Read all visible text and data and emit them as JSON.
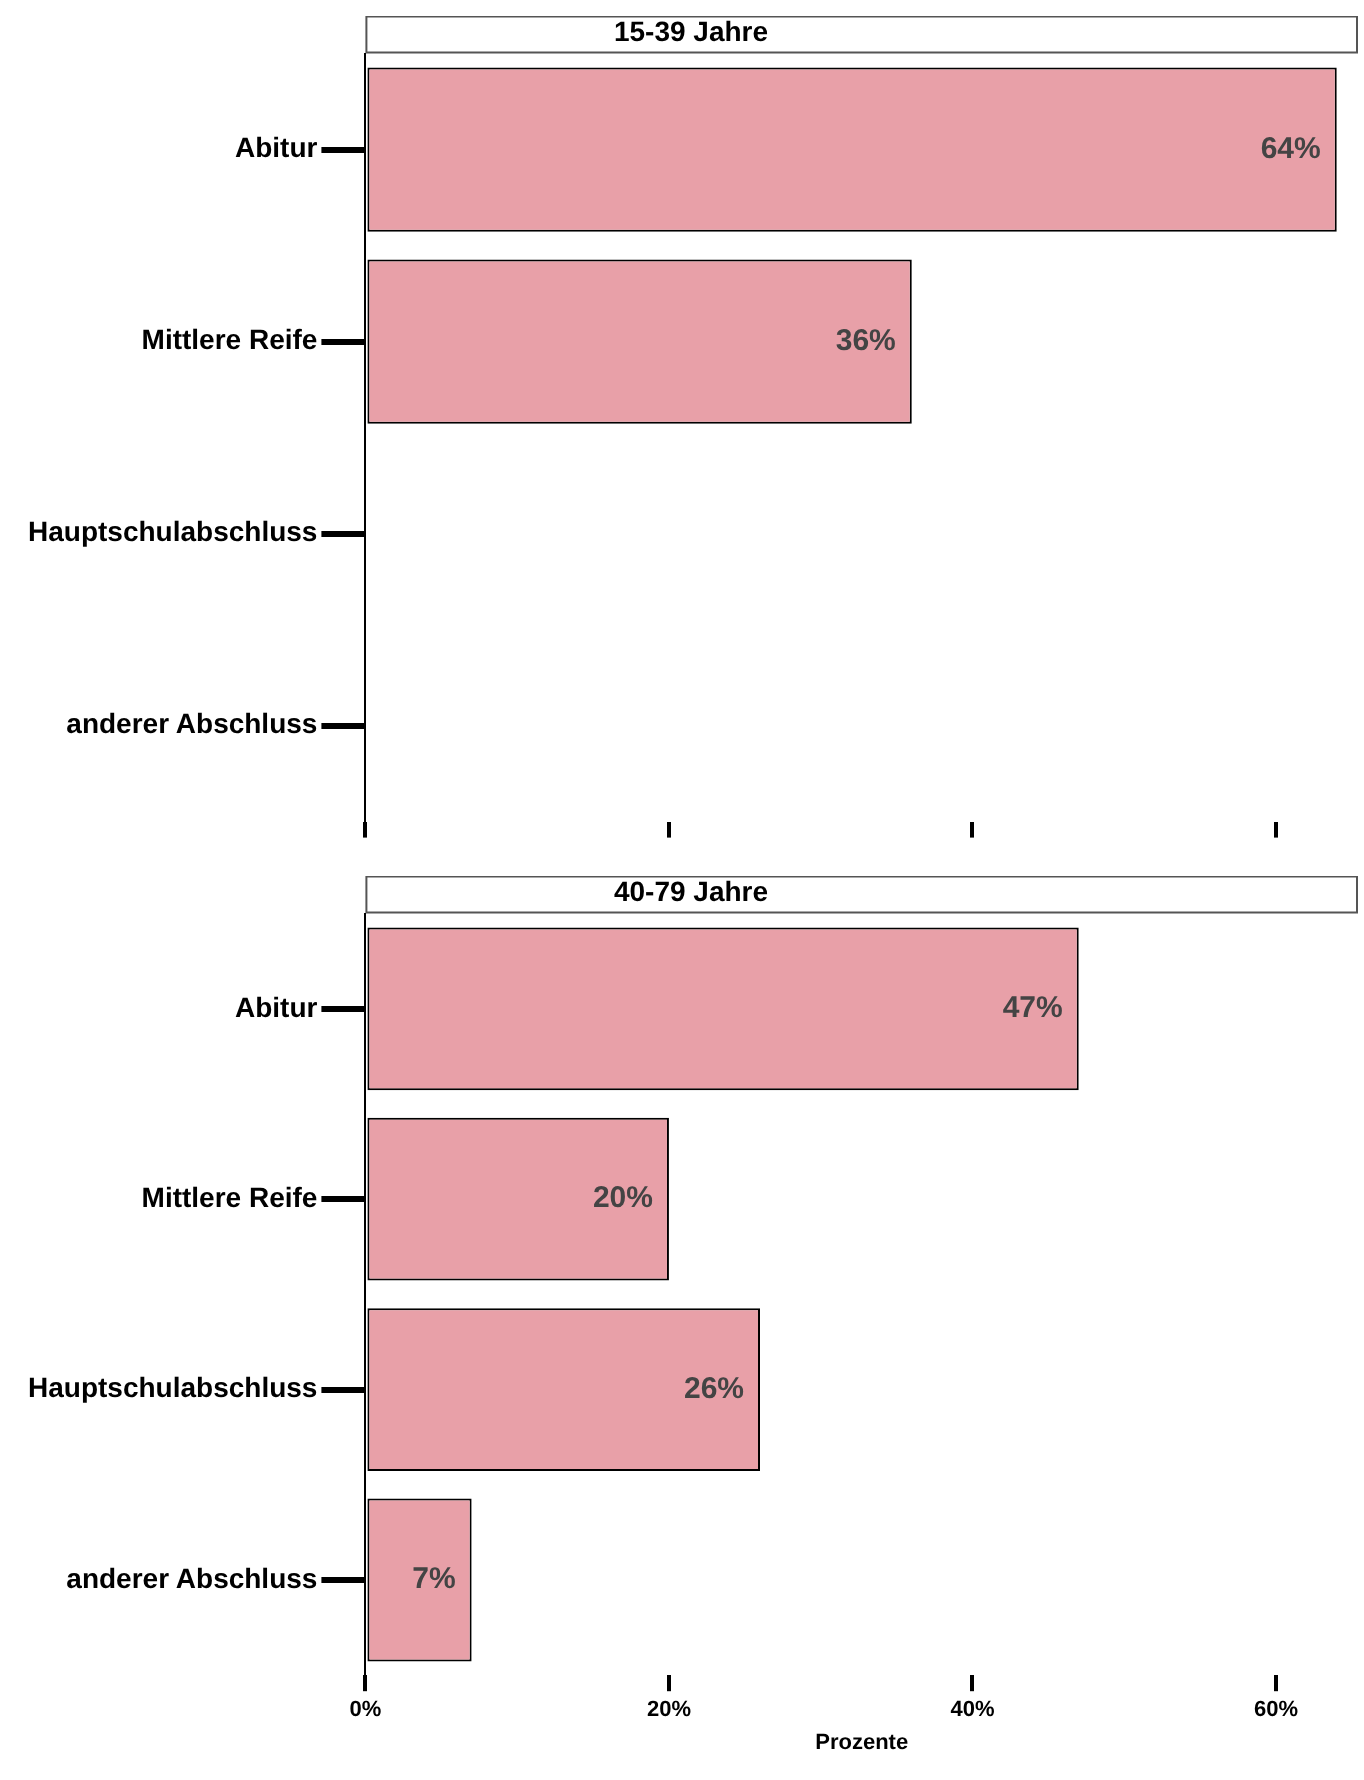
{
  "chart_data": [
    {
      "type": "bar",
      "orientation": "horizontal",
      "title": "15-39 Jahre",
      "categories": [
        "Abitur",
        "Mittlere Reife",
        "Hauptschulabschluss",
        "anderer Abschluss"
      ],
      "values": [
        64,
        36,
        null,
        null
      ],
      "value_labels": [
        "64%",
        "36%",
        null,
        null
      ],
      "color": "#e8a0a8",
      "xlim": [
        0,
        65.4
      ],
      "xticks": [
        {
          "value": 0,
          "label": null
        },
        {
          "value": 20,
          "label": null
        },
        {
          "value": 40,
          "label": null
        },
        {
          "value": 60,
          "label": null
        }
      ],
      "tick_labels": "y",
      "grid": false,
      "legend": false
    },
    {
      "type": "bar",
      "orientation": "horizontal",
      "title": "40-79 Jahre",
      "xlabel": "Prozente",
      "categories": [
        "Abitur",
        "Mittlere Reife",
        "Hauptschulabschluss",
        "anderer Abschluss"
      ],
      "values": [
        47,
        20,
        26,
        7
      ],
      "value_labels": [
        "47%",
        "20%",
        "26%",
        "7%"
      ],
      "color": "#e8a0a8",
      "xlim": [
        0,
        65.4
      ],
      "xticks": [
        {
          "value": 0,
          "label": "0%"
        },
        {
          "value": 20,
          "label": "20%"
        },
        {
          "value": 40,
          "label": "40%"
        },
        {
          "value": 60,
          "label": "60%"
        }
      ],
      "grid": false,
      "legend": false
    }
  ]
}
